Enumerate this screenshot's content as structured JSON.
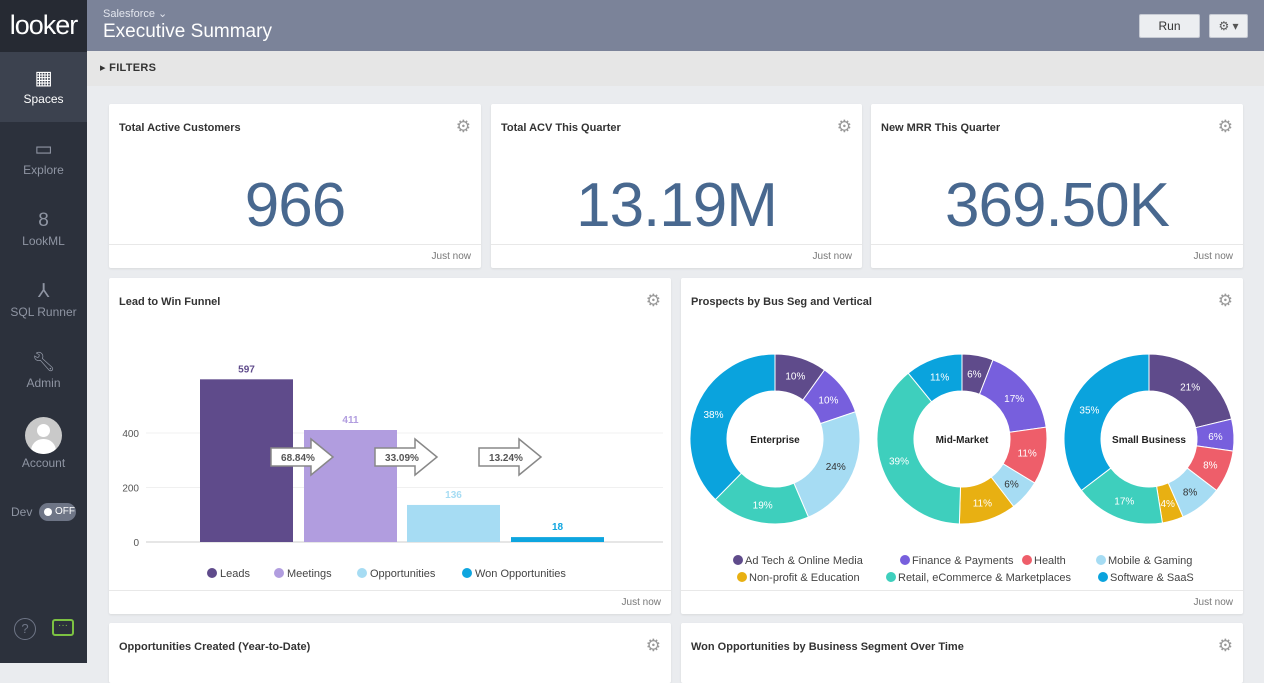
{
  "app": {
    "logo": "looker"
  },
  "sidebar": {
    "items": [
      {
        "label": "Spaces",
        "icon": "grid-icon",
        "active": true
      },
      {
        "label": "Explore",
        "icon": "flashlight-icon"
      },
      {
        "label": "LookML",
        "icon": "lookml-icon"
      },
      {
        "label": "SQL Runner",
        "icon": "compass-icon"
      },
      {
        "label": "Admin",
        "icon": "wrench-icon"
      }
    ],
    "account": "Account",
    "dev_label": "Dev",
    "dev_toggle": "OFF",
    "help": "?",
    "chat": "···"
  },
  "header": {
    "breadcrumb": "Salesforce ⌄",
    "title": "Executive Summary",
    "run": "Run",
    "gear": "⚙ ▾"
  },
  "filters": {
    "label": "▸  FILTERS"
  },
  "tiles": [
    {
      "title": "Total Active Customers",
      "value": "966",
      "updated": "Just now"
    },
    {
      "title": "Total ACV This Quarter",
      "value": "13.19M",
      "updated": "Just now"
    },
    {
      "title": "New MRR This Quarter",
      "value": "369.50K",
      "updated": "Just now"
    },
    {
      "title": "Lead to Win Funnel",
      "updated": "Just now"
    },
    {
      "title": "Prospects by Bus Seg and Vertical",
      "updated": "Just now"
    },
    {
      "title": "Opportunities Created (Year-to-Date)"
    },
    {
      "title": "Won Opportunities by Business Segment Over Time"
    }
  ],
  "chart_data": [
    {
      "type": "bar",
      "categories": [
        "Leads",
        "Meetings",
        "Opportunities",
        "Won Opportunities"
      ],
      "values": [
        597,
        411,
        136,
        18
      ],
      "colors": [
        "#5f4b8b",
        "#b19ddf",
        "#a6dcf3",
        "#0ea5df"
      ],
      "conversions": [
        "68.84%",
        "33.09%",
        "13.24%"
      ],
      "ylim": [
        0,
        600
      ],
      "yticks": [
        0,
        200,
        400
      ],
      "legend": "bottom",
      "grid": true
    },
    {
      "type": "pie",
      "donut": true,
      "legend": "bottom",
      "categories": [
        "Ad Tech & Online Media",
        "Finance & Payments",
        "Health",
        "Mobile & Gaming",
        "Non-profit & Education",
        "Retail, eCommerce & Marketplaces",
        "Software & SaaS"
      ],
      "colors": [
        "#5f4b8b",
        "#775fdd",
        "#ee5e6a",
        "#a6dcf3",
        "#e8b012",
        "#3ecfbd",
        "#0aa3dd"
      ],
      "series": [
        {
          "name": "Enterprise",
          "values": [
            10,
            10,
            0,
            24,
            0,
            19,
            38
          ]
        },
        {
          "name": "Mid-Market",
          "values": [
            6,
            17,
            11,
            6,
            11,
            39,
            11
          ]
        },
        {
          "name": "Small Business",
          "values": [
            21,
            6,
            8,
            8,
            4,
            17,
            35
          ]
        }
      ]
    }
  ]
}
